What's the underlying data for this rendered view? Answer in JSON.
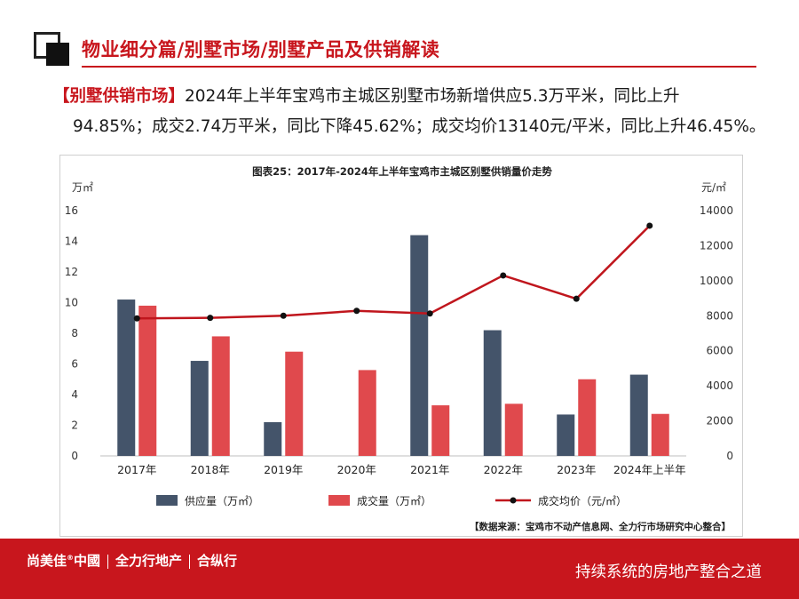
{
  "header": {
    "title": "物业细分篇/别墅市场/别墅产品及供销解读"
  },
  "summary": {
    "tag": "【别墅供销市场】",
    "line1": "2024年上半年宝鸡市主城区别墅市场新增供应5.3万平米，同比上升",
    "line2": "94.85%；成交2.74万平米，同比下降45.62%；成交均价13140元/平米，同比上升46.45%。"
  },
  "chart_data": {
    "type": "bar",
    "title": "图表25：2017年-2024年上半年宝鸡市主城区别墅供销量价走势",
    "categories": [
      "2017年",
      "2018年",
      "2019年",
      "2020年",
      "2021年",
      "2022年",
      "2023年",
      "2024年上半年"
    ],
    "y_left_unit": "万㎡",
    "y_right_unit": "元/㎡",
    "ylim_left": [
      0,
      16
    ],
    "ylim_right": [
      0,
      14000
    ],
    "yticks_left": [
      "0",
      "2",
      "4",
      "6",
      "8",
      "10",
      "12",
      "14",
      "16"
    ],
    "yticks_right": [
      "0",
      "2000",
      "4000",
      "6000",
      "8000",
      "10000",
      "12000",
      "14000"
    ],
    "series": [
      {
        "name": "供应量（万㎡）",
        "type": "bar",
        "axis": "left",
        "color": "#44546a",
        "values": [
          10.2,
          6.2,
          2.2,
          0,
          14.4,
          8.2,
          2.7,
          5.3
        ]
      },
      {
        "name": "成交量（万㎡）",
        "type": "bar",
        "axis": "left",
        "color": "#e0494d",
        "values": [
          9.8,
          7.8,
          6.8,
          5.6,
          3.3,
          3.4,
          5.0,
          2.74
        ]
      },
      {
        "name": "成交均价（元/㎡）",
        "type": "line",
        "axis": "right",
        "color": "#c0161d",
        "values": [
          7850,
          7880,
          8000,
          8280,
          8130,
          10300,
          8970,
          13140
        ]
      }
    ],
    "grid": false,
    "legend": "bottom",
    "source": "【数据来源：宝鸡市不动产信息网、全力行市场研究中心整合】"
  },
  "footer": {
    "brand1": "尚美佳",
    "brand1_sup": "®",
    "brand2": "中國",
    "brand3": "全力行地产",
    "brand4": "合纵行",
    "slogan": "持续系统的房地产整合之道"
  }
}
